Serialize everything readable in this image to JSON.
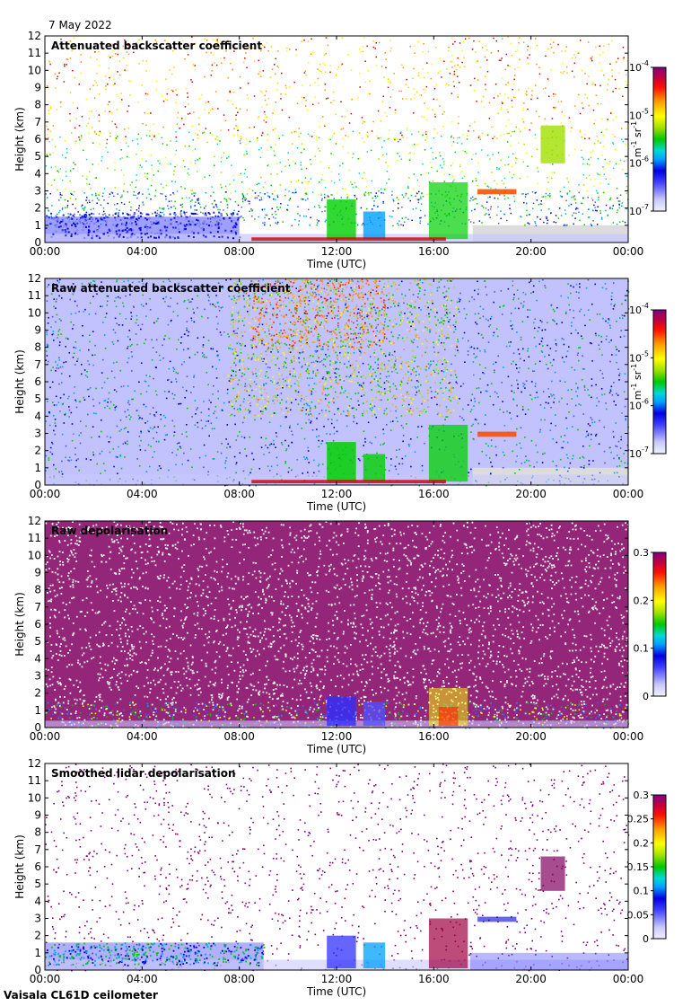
{
  "header": {
    "date": "7 May 2022"
  },
  "footer": {
    "instrument": "Vaisala CL61D ceilometer"
  },
  "chart_data": [
    {
      "type": "heatmap",
      "title": "Attenuated backscatter coefficient",
      "xlabel": "Time (UTC)",
      "ylabel": "Height (km)",
      "xticks": [
        "00:00",
        "04:00",
        "08:00",
        "12:00",
        "16:00",
        "20:00",
        "00:00"
      ],
      "yticks": [
        "0",
        "1",
        "2",
        "3",
        "4",
        "5",
        "6",
        "7",
        "8",
        "9",
        "10",
        "11",
        "12"
      ],
      "ylim": [
        0,
        12
      ],
      "xlim_hours": [
        0,
        24
      ],
      "colorbar": {
        "scale": "log",
        "ticks": [
          "10",
          "10",
          "10",
          "10"
        ],
        "tick_exponents": [
          "-4",
          "-5",
          "-6",
          "-7"
        ],
        "unit": "m",
        "unit_exp1": "-1",
        "unit2": "sr",
        "unit_exp2": "-1"
      }
    },
    {
      "type": "heatmap",
      "title": "Raw attenuated backscatter coefficient",
      "xlabel": "Time (UTC)",
      "ylabel": "Height (km)",
      "xticks": [
        "00:00",
        "04:00",
        "08:00",
        "12:00",
        "16:00",
        "20:00",
        "00:00"
      ],
      "yticks": [
        "0",
        "1",
        "2",
        "3",
        "4",
        "5",
        "6",
        "7",
        "8",
        "9",
        "10",
        "11",
        "12"
      ],
      "ylim": [
        0,
        12
      ],
      "xlim_hours": [
        0,
        24
      ],
      "colorbar": {
        "scale": "log",
        "ticks": [
          "10",
          "10",
          "10",
          "10"
        ],
        "tick_exponents": [
          "-4",
          "-5",
          "-6",
          "-7"
        ],
        "unit": "m",
        "unit_exp1": "-1",
        "unit2": "sr",
        "unit_exp2": "-1"
      }
    },
    {
      "type": "heatmap",
      "title": "Raw depolarisation",
      "xlabel": "Time (UTC)",
      "ylabel": "Height (km)",
      "xticks": [
        "00:00",
        "04:00",
        "08:00",
        "12:00",
        "16:00",
        "20:00",
        "00:00"
      ],
      "yticks": [
        "0",
        "1",
        "2",
        "3",
        "4",
        "5",
        "6",
        "7",
        "8",
        "9",
        "10",
        "11",
        "12"
      ],
      "ylim": [
        0,
        12
      ],
      "xlim_hours": [
        0,
        24
      ],
      "colorbar": {
        "scale": "linear",
        "ticks": [
          "0.3",
          "0.2",
          "0.1",
          "0"
        ],
        "range": [
          0,
          0.3
        ]
      }
    },
    {
      "type": "heatmap",
      "title": "Smoothed lidar depolarisation",
      "xlabel": "Time (UTC)",
      "ylabel": "Height (km)",
      "xticks": [
        "00:00",
        "04:00",
        "08:00",
        "12:00",
        "16:00",
        "20:00",
        "00:00"
      ],
      "yticks": [
        "0",
        "1",
        "2",
        "3",
        "4",
        "5",
        "6",
        "7",
        "8",
        "9",
        "10",
        "11",
        "12"
      ],
      "ylim": [
        0,
        12
      ],
      "xlim_hours": [
        0,
        24
      ],
      "colorbar": {
        "scale": "linear",
        "ticks": [
          "0.3",
          "0.25",
          "0.2",
          "0.15",
          "0.1",
          "0.05",
          "0"
        ],
        "range": [
          0,
          0.3
        ]
      }
    }
  ],
  "colors": {
    "colormap": [
      "#f2f2ff",
      "#c8c8ff",
      "#5050ff",
      "#0000e0",
      "#00a0ff",
      "#00d8d8",
      "#00d000",
      "#a0e000",
      "#ffff00",
      "#ffa000",
      "#ff2000",
      "#d00000",
      "#a00040",
      "#800080"
    ],
    "nodata": "#dcdcdc",
    "depol_purple": "#800060"
  }
}
